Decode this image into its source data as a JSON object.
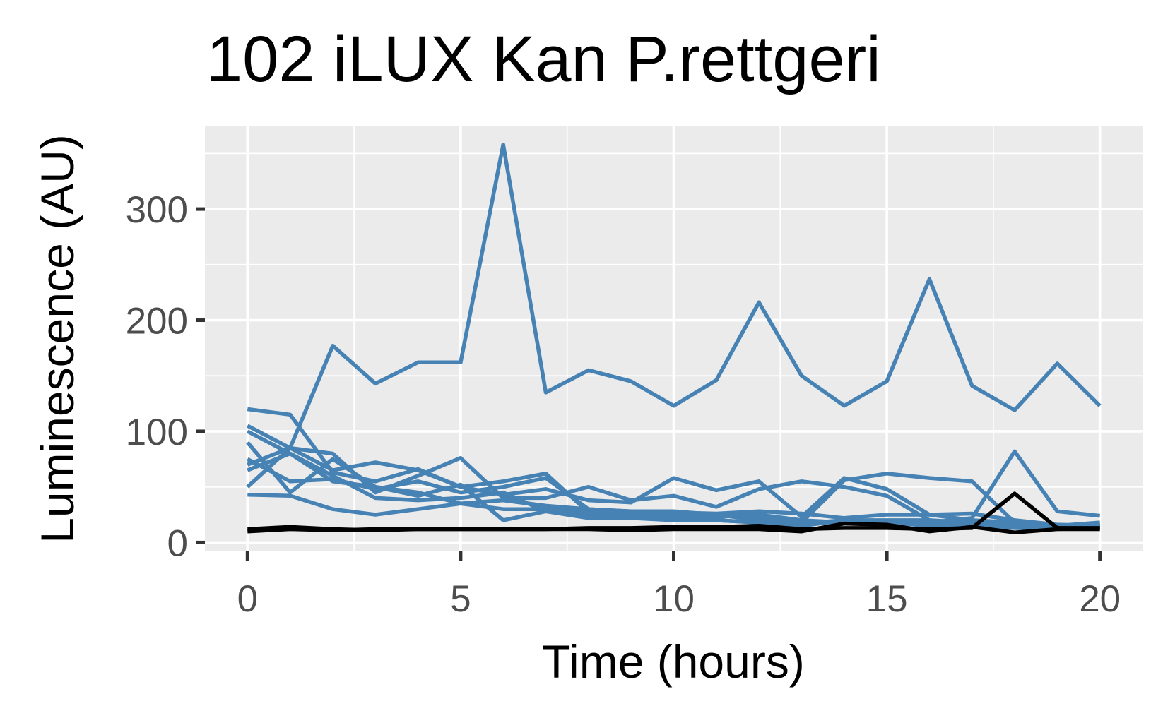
{
  "chart_data": {
    "type": "line",
    "title": "102 iLUX Kan P.rettgeri",
    "xlabel": "Time (hours)",
    "ylabel": "Luminescence (AU)",
    "xlim": [
      -1,
      21
    ],
    "ylim": [
      -8,
      375
    ],
    "x_ticks": [
      0,
      5,
      10,
      15,
      20
    ],
    "x_tick_labels": [
      "0",
      "5",
      "10",
      "15",
      "20"
    ],
    "y_ticks": [
      0,
      100,
      200,
      300
    ],
    "y_tick_labels": [
      "0",
      "100",
      "200",
      "300"
    ],
    "grid": true,
    "legend": "none",
    "x": [
      0,
      1,
      2,
      3,
      4,
      5,
      6,
      7,
      8,
      9,
      10,
      11,
      12,
      13,
      14,
      15,
      16,
      17,
      18,
      19,
      20
    ],
    "series": [
      {
        "color": "#4682b4",
        "values": [
          70,
          85,
          177,
          143,
          162,
          162,
          358,
          135,
          155,
          145,
          123,
          146,
          216,
          150,
          123,
          145,
          237,
          141,
          119,
          161,
          123
        ]
      },
      {
        "color": "#4682b4",
        "values": [
          120,
          115,
          63,
          55,
          66,
          50,
          43,
          48,
          38,
          36,
          58,
          47,
          55,
          23,
          58,
          48,
          25,
          20,
          18,
          15,
          18
        ]
      },
      {
        "color": "#4682b4",
        "values": [
          105,
          85,
          80,
          45,
          60,
          76,
          40,
          40,
          50,
          38,
          42,
          32,
          48,
          55,
          50,
          42,
          20,
          17,
          18,
          14,
          16
        ]
      },
      {
        "color": "#4682b4",
        "values": [
          50,
          85,
          65,
          72,
          65,
          50,
          55,
          62,
          27,
          25,
          25,
          23,
          25,
          20,
          18,
          17,
          18,
          22,
          82,
          28,
          24
        ]
      },
      {
        "color": "#4682b4",
        "values": [
          100,
          80,
          55,
          50,
          45,
          35,
          38,
          33,
          30,
          28,
          27,
          26,
          28,
          26,
          22,
          25,
          25,
          26,
          20,
          16,
          15
        ]
      },
      {
        "color": "#4682b4",
        "values": [
          90,
          45,
          75,
          50,
          42,
          52,
          20,
          28,
          22,
          22,
          20,
          20,
          18,
          17,
          20,
          20,
          20,
          18,
          15,
          14,
          14
        ]
      },
      {
        "color": "#4682b4",
        "values": [
          65,
          80,
          60,
          40,
          38,
          40,
          45,
          28,
          25,
          25,
          22,
          20,
          18,
          15,
          20,
          18,
          16,
          15,
          14,
          14,
          14
        ]
      },
      {
        "color": "#4682b4",
        "values": [
          43,
          42,
          30,
          25,
          30,
          35,
          30,
          30,
          27,
          27,
          25,
          25,
          20,
          18,
          56,
          62,
          58,
          55,
          18,
          16,
          15
        ]
      },
      {
        "color": "#4682b4",
        "values": [
          75,
          55,
          57,
          48,
          55,
          45,
          50,
          58,
          30,
          28,
          28,
          25,
          22,
          18,
          18,
          18,
          15,
          15,
          13,
          12,
          13
        ]
      },
      {
        "color": "#000000",
        "values": [
          12,
          14,
          12,
          11,
          12,
          12,
          12,
          12,
          13,
          13,
          14,
          14,
          15,
          12,
          13,
          13,
          12,
          13,
          44,
          13,
          13
        ]
      },
      {
        "color": "#000000",
        "values": [
          10,
          12,
          11,
          12,
          12,
          12,
          12,
          12,
          12,
          11,
          12,
          12,
          12,
          10,
          17,
          16,
          10,
          14,
          9,
          12,
          12
        ]
      }
    ]
  }
}
